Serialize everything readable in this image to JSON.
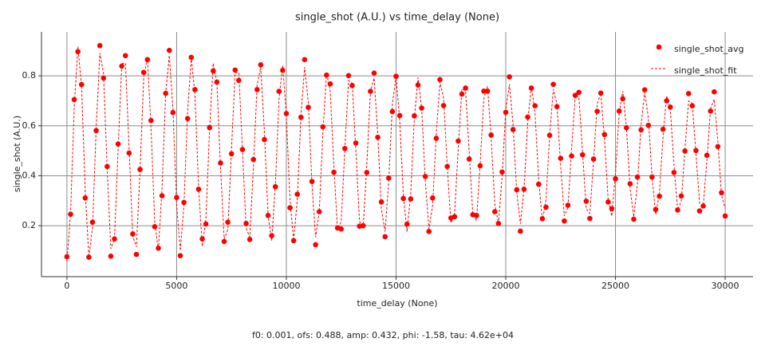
{
  "chart_data": {
    "type": "scatter",
    "title": "single_shot (A.U.) vs time_delay (None)",
    "x_label": "time_delay (None)",
    "y_label": "single_shot (A.U.)",
    "annotation": "f0: 0.001, ofs: 0.488, amp: 0.432, phi: -1.58, tau: 4.62e+04",
    "legend": "upper right",
    "grid": true,
    "xlim": [
      -1160,
      31270
    ],
    "ylim": [
      -0.004,
      0.976
    ],
    "xticks": [
      0,
      5000,
      10000,
      15000,
      20000,
      25000,
      30000
    ],
    "yticks": [
      0.2,
      0.4,
      0.6,
      0.8
    ],
    "x": [
      0,
      167,
      333,
      500,
      667,
      833,
      1000,
      1167,
      1333,
      1500,
      1667,
      1833,
      2000,
      2167,
      2333,
      2500,
      2667,
      2833,
      3000,
      3167,
      3333,
      3500,
      3667,
      3833,
      4000,
      4167,
      4333,
      4500,
      4667,
      4833,
      5000,
      5167,
      5333,
      5500,
      5667,
      5833,
      6000,
      6167,
      6333,
      6500,
      6667,
      6833,
      7000,
      7167,
      7333,
      7500,
      7667,
      7833,
      8000,
      8167,
      8333,
      8500,
      8667,
      8833,
      9000,
      9167,
      9333,
      9500,
      9667,
      9833,
      10000,
      10167,
      10333,
      10500,
      10667,
      10833,
      11000,
      11167,
      11333,
      11500,
      11667,
      11833,
      12000,
      12167,
      12333,
      12500,
      12667,
      12833,
      13000,
      13167,
      13333,
      13500,
      13667,
      13833,
      14000,
      14167,
      14333,
      14500,
      14667,
      14833,
      15000,
      15167,
      15333,
      15500,
      15667,
      15833,
      16000,
      16167,
      16333,
      16500,
      16667,
      16833,
      17000,
      17167,
      17333,
      17500,
      17667,
      17833,
      18000,
      18167,
      18333,
      18500,
      18667,
      18833,
      19000,
      19167,
      19333,
      19500,
      19667,
      19833,
      20000,
      20167,
      20333,
      20500,
      20667,
      20833,
      21000,
      21167,
      21333,
      21500,
      21667,
      21833,
      22000,
      22167,
      22333,
      22500,
      22667,
      22833,
      23000,
      23167,
      23333,
      23500,
      23667,
      23833,
      24000,
      24167,
      24333,
      24500,
      24667,
      24833,
      25000,
      25167,
      25333,
      25500,
      25667,
      25833,
      26000,
      26167,
      26333,
      26500,
      26667,
      26833,
      27000,
      27167,
      27333,
      27500,
      27667,
      27833,
      28000,
      28167,
      28333,
      28500,
      28667,
      28833,
      29000,
      29167,
      29333,
      29500,
      29667,
      29833,
      30000
    ],
    "series": [
      {
        "name": "single_shot_avg",
        "type": "scatter",
        "color": "#ff0000",
        "values": [
          0.076,
          0.246,
          0.705,
          0.897,
          0.765,
          0.311,
          0.074,
          0.214,
          0.581,
          0.921,
          0.791,
          0.437,
          0.078,
          0.147,
          0.527,
          0.839,
          0.881,
          0.491,
          0.167,
          0.085,
          0.425,
          0.814,
          0.865,
          0.621,
          0.196,
          0.11,
          0.32,
          0.73,
          0.902,
          0.653,
          0.313,
          0.08,
          0.293,
          0.629,
          0.874,
          0.745,
          0.346,
          0.147,
          0.207,
          0.593,
          0.82,
          0.775,
          0.451,
          0.137,
          0.214,
          0.488,
          0.823,
          0.782,
          0.505,
          0.209,
          0.145,
          0.465,
          0.745,
          0.844,
          0.545,
          0.241,
          0.16,
          0.356,
          0.738,
          0.822,
          0.649,
          0.272,
          0.14,
          0.326,
          0.634,
          0.865,
          0.674,
          0.377,
          0.124,
          0.256,
          0.596,
          0.803,
          0.768,
          0.414,
          0.191,
          0.187,
          0.509,
          0.801,
          0.761,
          0.531,
          0.198,
          0.2,
          0.413,
          0.738,
          0.811,
          0.554,
          0.295,
          0.156,
          0.391,
          0.657,
          0.798,
          0.641,
          0.309,
          0.206,
          0.307,
          0.64,
          0.763,
          0.671,
          0.397,
          0.177,
          0.311,
          0.55,
          0.785,
          0.681,
          0.437,
          0.231,
          0.236,
          0.539,
          0.727,
          0.751,
          0.467,
          0.244,
          0.241,
          0.44,
          0.739,
          0.739,
          0.563,
          0.256,
          0.209,
          0.415,
          0.654,
          0.796,
          0.585,
          0.344,
          0.178,
          0.346,
          0.635,
          0.751,
          0.68,
          0.366,
          0.228,
          0.274,
          0.562,
          0.766,
          0.677,
          0.47,
          0.219,
          0.282,
          0.479,
          0.722,
          0.734,
          0.484,
          0.298,
          0.229,
          0.467,
          0.658,
          0.731,
          0.565,
          0.295,
          0.268,
          0.388,
          0.659,
          0.708,
          0.592,
          0.368,
          0.226,
          0.395,
          0.584,
          0.744,
          0.602,
          0.395,
          0.265,
          0.318,
          0.586,
          0.7,
          0.675,
          0.413,
          0.263,
          0.319,
          0.499,
          0.729,
          0.68,
          0.501,
          0.259,
          0.279,
          0.482,
          0.659,
          0.736,
          0.517,
          0.332,
          0.239
        ]
      },
      {
        "name": "single_shot_fit",
        "type": "line",
        "color": "#ff0000",
        "values": [
          0.056,
          0.256,
          0.675,
          0.917,
          0.755,
          0.341,
          0.074,
          0.194,
          0.591,
          0.891,
          0.811,
          0.427,
          0.108,
          0.147,
          0.507,
          0.849,
          0.851,
          0.511,
          0.157,
          0.115,
          0.425,
          0.794,
          0.875,
          0.591,
          0.216,
          0.1,
          0.35,
          0.73,
          0.882,
          0.663,
          0.283,
          0.1,
          0.283,
          0.659,
          0.874,
          0.725,
          0.356,
          0.117,
          0.227,
          0.583,
          0.85,
          0.775,
          0.431,
          0.147,
          0.184,
          0.508,
          0.813,
          0.812,
          0.505,
          0.189,
          0.155,
          0.435,
          0.765,
          0.834,
          0.575,
          0.241,
          0.14,
          0.366,
          0.708,
          0.842,
          0.639,
          0.302,
          0.14,
          0.306,
          0.644,
          0.835,
          0.694,
          0.367,
          0.154,
          0.256,
          0.576,
          0.813,
          0.738,
          0.434,
          0.181,
          0.217,
          0.509,
          0.781,
          0.771,
          0.501,
          0.218,
          0.19,
          0.443,
          0.738,
          0.791,
          0.564,
          0.265,
          0.176,
          0.381,
          0.687,
          0.798,
          0.621,
          0.319,
          0.176,
          0.327,
          0.63,
          0.793,
          0.671,
          0.377,
          0.187,
          0.281,
          0.57,
          0.775,
          0.711,
          0.437,
          0.211,
          0.246,
          0.509,
          0.747,
          0.741,
          0.497,
          0.244,
          0.221,
          0.45,
          0.709,
          0.759,
          0.553,
          0.286,
          0.209,
          0.395,
          0.664,
          0.766,
          0.605,
          0.334,
          0.208,
          0.346,
          0.615,
          0.761,
          0.65,
          0.386,
          0.218,
          0.304,
          0.562,
          0.746,
          0.687,
          0.44,
          0.239,
          0.272,
          0.509,
          0.722,
          0.714,
          0.494,
          0.268,
          0.249,
          0.457,
          0.688,
          0.731,
          0.545,
          0.305,
          0.238,
          0.408,
          0.649,
          0.738,
          0.592,
          0.348,
          0.236,
          0.365,
          0.604,
          0.734,
          0.632,
          0.395,
          0.245,
          0.328,
          0.556,
          0.72,
          0.665,
          0.443,
          0.263,
          0.299,
          0.509,
          0.699,
          0.69,
          0.491,
          0.289,
          0.279,
          0.462,
          0.669,
          0.706,
          0.537,
          0.322,
          0.269
        ]
      }
    ]
  }
}
